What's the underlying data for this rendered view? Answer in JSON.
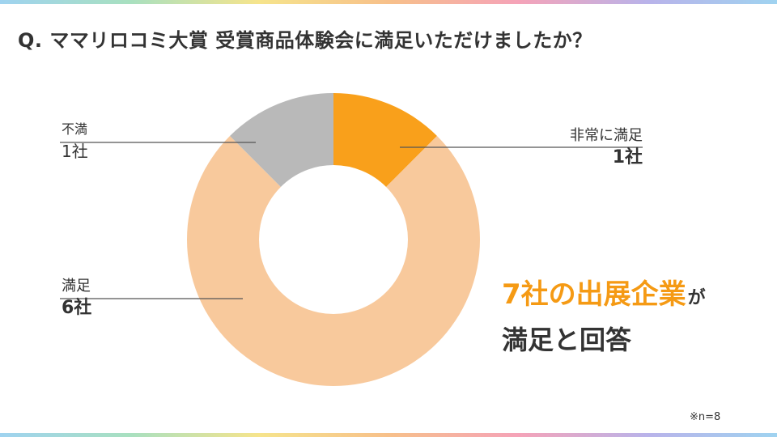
{
  "question": "Q. ママリロコミ大賞 受賞商品体験会に満足いただけましたか？",
  "chart_data": {
    "type": "pie",
    "variant": "donut",
    "categories": [
      "非常に満足",
      "満足",
      "不満"
    ],
    "values": [
      1,
      6,
      1
    ],
    "value_labels": [
      "1社",
      "6社",
      "1社"
    ],
    "colors": [
      "#f9a01b",
      "#f8c99c",
      "#b9b9b9"
    ],
    "legend": "none"
  },
  "callout": {
    "highlight": "7社の出展企業",
    "particle": "が",
    "line2": "満足と回答"
  },
  "footnote": "※n=8",
  "colors": {
    "accent": "#f59a14",
    "text": "#333333"
  }
}
